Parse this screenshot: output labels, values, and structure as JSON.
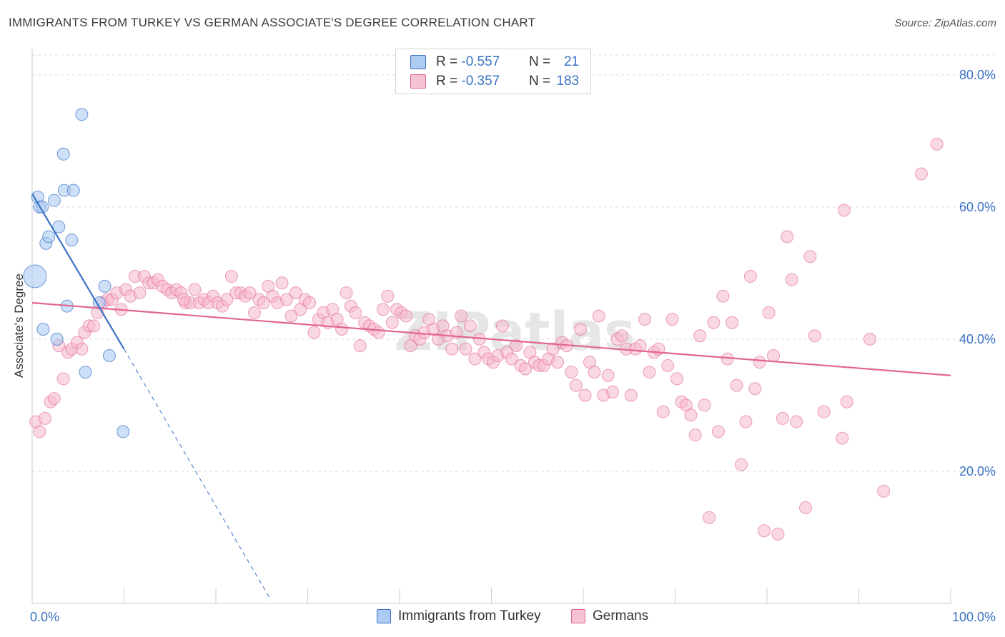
{
  "title": "IMMIGRANTS FROM TURKEY VS GERMAN ASSOCIATE'S DEGREE CORRELATION CHART",
  "source": "Source: ZipAtlas.com",
  "watermark": "ZIPatlas",
  "legend": {
    "rows": [
      {
        "r_label": "R = ",
        "r_value": "-0.557",
        "n_label": "N = ",
        "n_value": "21"
      },
      {
        "r_label": "R = ",
        "r_value": "-0.357",
        "n_label": "N = ",
        "n_value": "183"
      }
    ]
  },
  "colors": {
    "blue": "#3a72c4",
    "blue_fill": "#aecbf2",
    "pink": "#e0668f",
    "pink_fill": "#f6b8cc",
    "axis_text": "#3a72c4"
  },
  "chart_data": {
    "type": "scatter",
    "title": "IMMIGRANTS FROM TURKEY VS GERMAN ASSOCIATE'S DEGREE CORRELATION CHART",
    "ylabel": "Associate's Degree",
    "xlabel": "",
    "xlim": [
      0,
      100
    ],
    "ylim": [
      0,
      83
    ],
    "x_tick_labels": [
      {
        "value": 0,
        "label": "0.0%"
      },
      {
        "value": 100,
        "label": "100.0%"
      }
    ],
    "y_tick_labels": [
      {
        "value": 20,
        "label": "20.0%"
      },
      {
        "value": 40,
        "label": "40.0%"
      },
      {
        "value": 60,
        "label": "60.0%"
      },
      {
        "value": 80,
        "label": "80.0%"
      }
    ],
    "grid": "horizontal dashed",
    "legend_position": "top-center",
    "series": [
      {
        "name": "Immigrants from Turkey",
        "color": "#3a72c4",
        "trend": {
          "x": [
            0,
            10
          ],
          "y": [
            62,
            38.5
          ],
          "dashed_extension_to": [
            26,
            0.5
          ]
        },
        "points": [
          [
            0.6,
            61.5
          ],
          [
            0.8,
            60.0
          ],
          [
            1.1,
            60.0
          ],
          [
            1.5,
            54.5
          ],
          [
            1.8,
            55.5
          ],
          [
            2.4,
            61.0
          ],
          [
            2.9,
            57.0
          ],
          [
            3.4,
            68.0
          ],
          [
            3.5,
            62.5
          ],
          [
            3.8,
            45.0
          ],
          [
            4.3,
            55.0
          ],
          [
            4.5,
            62.5
          ],
          [
            2.7,
            40.0
          ],
          [
            5.4,
            74.0
          ],
          [
            5.8,
            35.0
          ],
          [
            7.3,
            45.5
          ],
          [
            7.9,
            48.0
          ],
          [
            8.4,
            37.5
          ],
          [
            9.9,
            26.0
          ],
          [
            0.3,
            49.5
          ],
          [
            1.2,
            41.5
          ]
        ]
      },
      {
        "name": "Germans",
        "color": "#e0668f",
        "trend": {
          "x": [
            0,
            100
          ],
          "y": [
            45.5,
            34.5
          ]
        },
        "points": [
          [
            0.4,
            27.5
          ],
          [
            0.8,
            26.0
          ],
          [
            1.4,
            28.0
          ],
          [
            2.0,
            30.5
          ],
          [
            2.4,
            31.0
          ],
          [
            2.9,
            39.0
          ],
          [
            3.4,
            34.0
          ],
          [
            3.9,
            38.0
          ],
          [
            4.3,
            38.5
          ],
          [
            4.9,
            39.5
          ],
          [
            5.4,
            38.5
          ],
          [
            5.7,
            41.0
          ],
          [
            6.2,
            42.0
          ],
          [
            6.7,
            42.0
          ],
          [
            7.1,
            44.0
          ],
          [
            7.7,
            45.5
          ],
          [
            8.2,
            46.0
          ],
          [
            8.7,
            46.0
          ],
          [
            9.2,
            47.0
          ],
          [
            9.7,
            44.5
          ],
          [
            10.2,
            47.5
          ],
          [
            10.7,
            46.5
          ],
          [
            11.2,
            49.5
          ],
          [
            11.7,
            47.0
          ],
          [
            12.2,
            49.5
          ],
          [
            12.7,
            48.5
          ],
          [
            13.2,
            48.5
          ],
          [
            13.7,
            49.0
          ],
          [
            14.2,
            48.0
          ],
          [
            14.7,
            47.5
          ],
          [
            15.2,
            47.0
          ],
          [
            15.7,
            47.5
          ],
          [
            16.2,
            47.0
          ],
          [
            16.7,
            45.5
          ],
          [
            17.2,
            45.5
          ],
          [
            17.7,
            47.5
          ],
          [
            18.2,
            45.5
          ],
          [
            18.7,
            46.0
          ],
          [
            19.2,
            45.5
          ],
          [
            19.7,
            46.5
          ],
          [
            20.2,
            45.5
          ],
          [
            20.7,
            45.0
          ],
          [
            21.2,
            46.0
          ],
          [
            21.7,
            49.5
          ],
          [
            22.2,
            47.0
          ],
          [
            22.7,
            47.0
          ],
          [
            23.2,
            46.5
          ],
          [
            23.7,
            47.0
          ],
          [
            24.2,
            44.0
          ],
          [
            24.7,
            46.0
          ],
          [
            25.2,
            45.5
          ],
          [
            25.7,
            48.0
          ],
          [
            26.2,
            46.5
          ],
          [
            26.7,
            45.5
          ],
          [
            27.2,
            48.5
          ],
          [
            27.7,
            46.0
          ],
          [
            28.2,
            43.5
          ],
          [
            28.7,
            47.0
          ],
          [
            29.2,
            44.5
          ],
          [
            29.7,
            46.0
          ],
          [
            30.2,
            45.5
          ],
          [
            30.7,
            41.0
          ],
          [
            31.2,
            43.0
          ],
          [
            31.7,
            44.0
          ],
          [
            32.2,
            42.5
          ],
          [
            32.7,
            44.5
          ],
          [
            33.2,
            43.0
          ],
          [
            33.7,
            41.5
          ],
          [
            34.2,
            47.0
          ],
          [
            34.7,
            45.0
          ],
          [
            35.2,
            44.0
          ],
          [
            35.7,
            39.0
          ],
          [
            36.2,
            42.5
          ],
          [
            36.7,
            42.0
          ],
          [
            37.2,
            41.5
          ],
          [
            37.7,
            41.0
          ],
          [
            38.2,
            44.5
          ],
          [
            38.7,
            46.5
          ],
          [
            39.2,
            42.5
          ],
          [
            39.7,
            44.5
          ],
          [
            40.2,
            44.0
          ],
          [
            40.7,
            43.5
          ],
          [
            41.2,
            39.0
          ],
          [
            41.7,
            40.5
          ],
          [
            42.2,
            40.0
          ],
          [
            42.7,
            41.0
          ],
          [
            43.2,
            43.0
          ],
          [
            43.7,
            41.5
          ],
          [
            44.2,
            40.0
          ],
          [
            44.7,
            42.0
          ],
          [
            45.2,
            40.5
          ],
          [
            45.7,
            38.5
          ],
          [
            46.2,
            41.0
          ],
          [
            46.7,
            43.5
          ],
          [
            47.2,
            38.5
          ],
          [
            47.7,
            42.0
          ],
          [
            48.2,
            37.0
          ],
          [
            48.7,
            40.0
          ],
          [
            49.2,
            38.0
          ],
          [
            49.7,
            37.0
          ],
          [
            50.2,
            36.5
          ],
          [
            50.7,
            37.5
          ],
          [
            51.2,
            42.0
          ],
          [
            51.7,
            38.0
          ],
          [
            52.2,
            37.0
          ],
          [
            52.7,
            39.0
          ],
          [
            53.2,
            36.0
          ],
          [
            53.7,
            35.5
          ],
          [
            54.2,
            38.0
          ],
          [
            54.7,
            36.5
          ],
          [
            55.2,
            36.0
          ],
          [
            55.7,
            36.0
          ],
          [
            56.2,
            37.0
          ],
          [
            56.7,
            38.5
          ],
          [
            57.2,
            36.5
          ],
          [
            57.7,
            39.5
          ],
          [
            58.2,
            39.0
          ],
          [
            58.7,
            35.0
          ],
          [
            59.2,
            33.0
          ],
          [
            59.7,
            41.5
          ],
          [
            60.2,
            31.5
          ],
          [
            60.7,
            36.5
          ],
          [
            61.2,
            35.0
          ],
          [
            61.7,
            43.5
          ],
          [
            62.2,
            31.5
          ],
          [
            62.7,
            34.5
          ],
          [
            63.2,
            32.0
          ],
          [
            63.7,
            40.0
          ],
          [
            64.2,
            40.5
          ],
          [
            64.7,
            38.5
          ],
          [
            65.2,
            31.5
          ],
          [
            65.7,
            38.5
          ],
          [
            66.2,
            39.0
          ],
          [
            66.7,
            43.0
          ],
          [
            67.2,
            35.0
          ],
          [
            67.7,
            38.0
          ],
          [
            68.2,
            38.5
          ],
          [
            68.7,
            29.0
          ],
          [
            69.2,
            36.0
          ],
          [
            69.7,
            43.0
          ],
          [
            70.2,
            34.0
          ],
          [
            70.7,
            30.5
          ],
          [
            71.2,
            30.0
          ],
          [
            71.7,
            28.5
          ],
          [
            72.2,
            25.5
          ],
          [
            72.7,
            40.5
          ],
          [
            73.2,
            30.0
          ],
          [
            73.7,
            13.0
          ],
          [
            74.2,
            42.5
          ],
          [
            74.7,
            26.0
          ],
          [
            75.2,
            46.5
          ],
          [
            75.7,
            37.0
          ],
          [
            76.2,
            42.5
          ],
          [
            76.7,
            33.0
          ],
          [
            77.2,
            21.0
          ],
          [
            77.7,
            27.5
          ],
          [
            78.2,
            49.5
          ],
          [
            78.7,
            32.5
          ],
          [
            79.2,
            36.5
          ],
          [
            79.7,
            11.0
          ],
          [
            80.2,
            44.0
          ],
          [
            80.7,
            37.5
          ],
          [
            81.2,
            10.5
          ],
          [
            81.7,
            28.0
          ],
          [
            82.2,
            55.5
          ],
          [
            82.7,
            49.0
          ],
          [
            83.2,
            27.5
          ],
          [
            84.2,
            14.5
          ],
          [
            84.7,
            52.5
          ],
          [
            85.2,
            40.5
          ],
          [
            86.2,
            29.0
          ],
          [
            88.2,
            25.0
          ],
          [
            88.7,
            30.5
          ],
          [
            88.4,
            59.5
          ],
          [
            91.2,
            40.0
          ],
          [
            92.7,
            17.0
          ],
          [
            96.8,
            65.0
          ],
          [
            98.5,
            69.5
          ],
          [
            16.5,
            46.0
          ]
        ]
      }
    ]
  },
  "bottom_legend": [
    "Immigrants from Turkey",
    "Germans"
  ]
}
